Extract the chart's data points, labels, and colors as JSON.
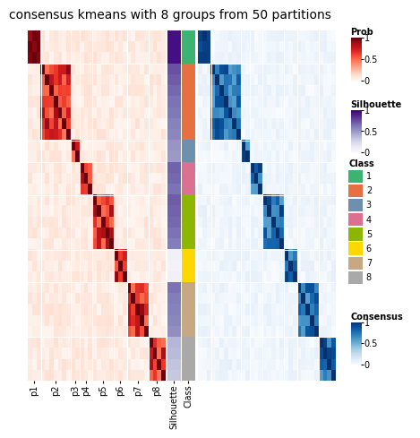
{
  "title": "consensus kmeans with 8 groups from 50 partitions",
  "n_samples": 32,
  "n_groups": 8,
  "group_sizes": [
    3,
    7,
    2,
    3,
    5,
    3,
    5,
    4
  ],
  "group_labels": [
    "1",
    "2",
    "3",
    "4",
    "5",
    "6",
    "7",
    "8"
  ],
  "class_colors": [
    "#3CB371",
    "#E87040",
    "#6F8FAF",
    "#DB7093",
    "#8DB600",
    "#FFD700",
    "#C8A882",
    "#A9A9A9"
  ],
  "prob_colormap": "Reds",
  "silhouette_colormap": "Purples",
  "consensus_colormap": "Blues",
  "background_color": "#ffffff",
  "title_fontsize": 10,
  "silhouette_values": [
    0.95,
    0.95,
    0.95,
    0.75,
    0.72,
    0.68,
    0.65,
    0.63,
    0.6,
    0.58,
    0.52,
    0.5,
    0.7,
    0.68,
    0.65,
    0.72,
    0.7,
    0.68,
    0.65,
    0.62,
    0.1,
    0.08,
    0.09,
    0.65,
    0.62,
    0.6,
    0.58,
    0.55,
    0.4,
    0.38,
    0.35,
    0.33
  ]
}
